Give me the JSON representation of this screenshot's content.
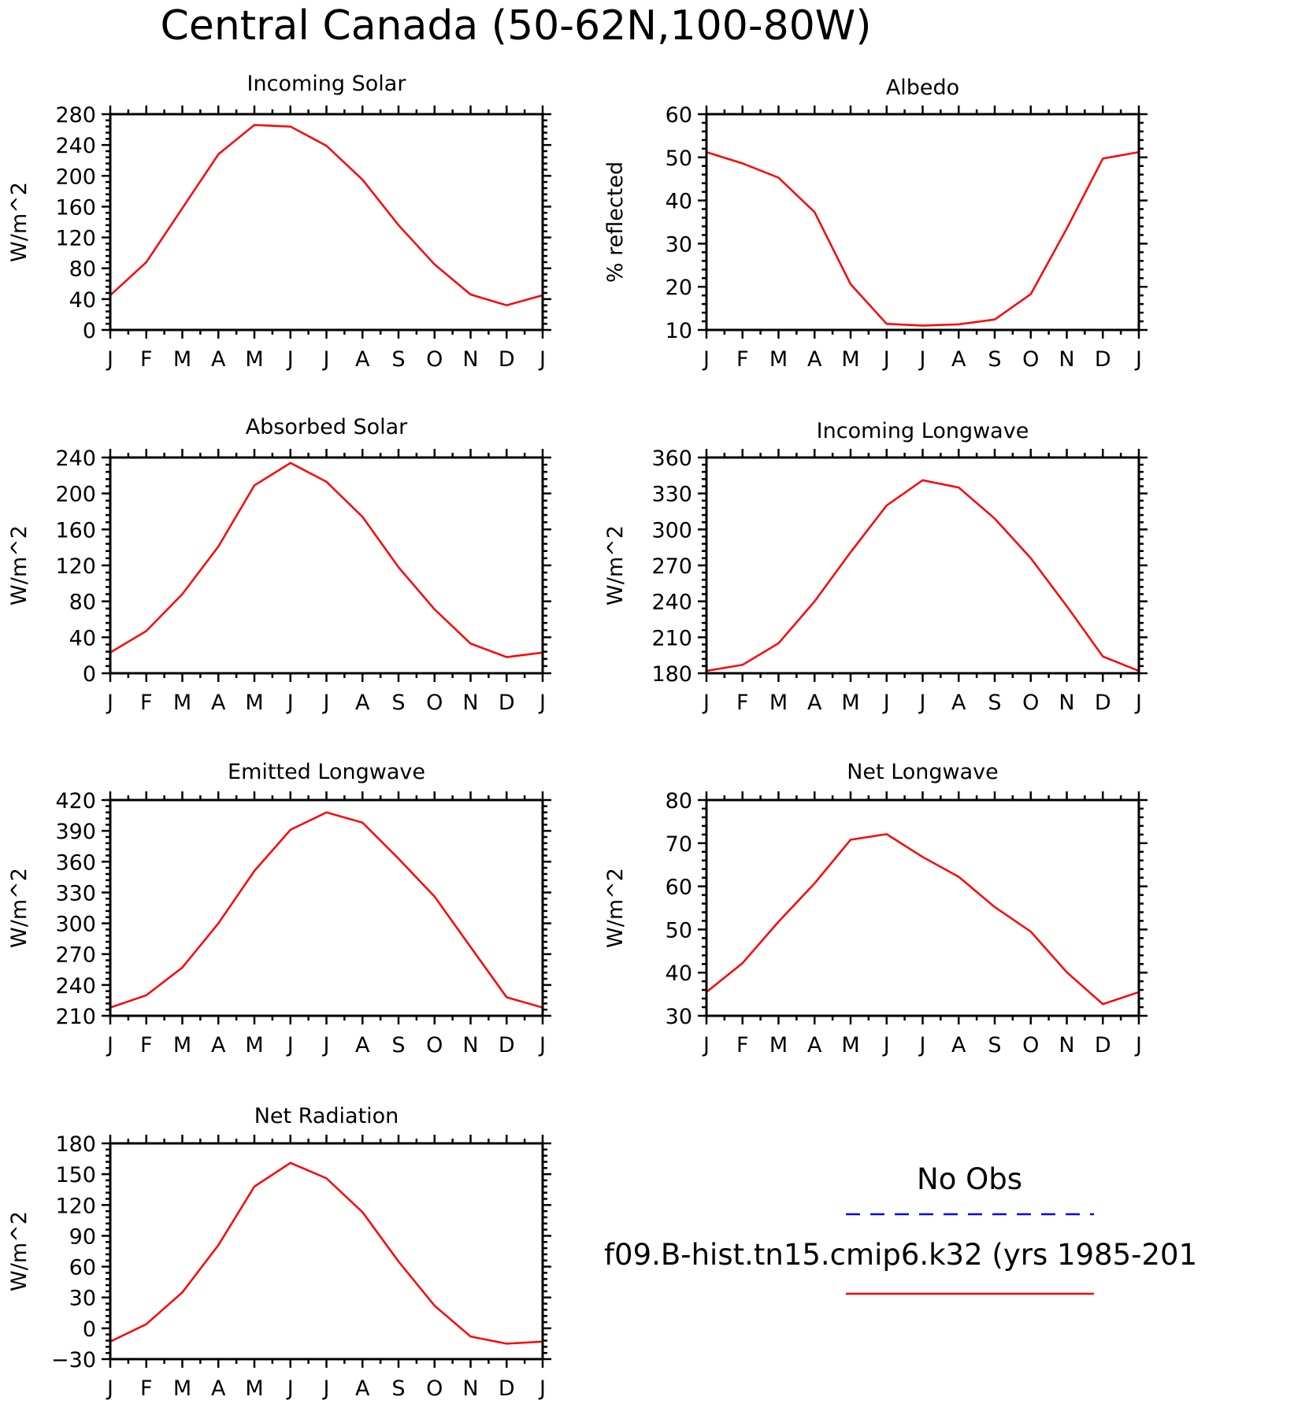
{
  "title": "Central Canada (50-62N,100-80W)",
  "colors": {
    "model": "#ff0000",
    "obs": "#0000ff"
  },
  "legend": {
    "obs_label": "No Obs",
    "model_label": "f09.B-hist.tn15.cmip6.k32 (yrs 1985-201"
  },
  "chart_data": [
    {
      "type": "line",
      "title": "Incoming Solar",
      "ylabel": "W/m^2",
      "xlabel": "",
      "categories": [
        "J",
        "F",
        "M",
        "A",
        "M",
        "J",
        "J",
        "A",
        "S",
        "O",
        "N",
        "D",
        "J"
      ],
      "ylim": [
        0,
        280
      ],
      "yticks": [
        0,
        40,
        80,
        120,
        160,
        200,
        240,
        280
      ],
      "series": [
        {
          "values": [
            45,
            88,
            158,
            228,
            266,
            264,
            239,
            195,
            136,
            85,
            46,
            32,
            45
          ]
        }
      ]
    },
    {
      "type": "line",
      "title": "Albedo",
      "ylabel": "% reflected",
      "xlabel": "",
      "categories": [
        "J",
        "F",
        "M",
        "A",
        "M",
        "J",
        "J",
        "A",
        "S",
        "O",
        "N",
        "D",
        "J"
      ],
      "ylim": [
        10,
        60
      ],
      "yticks": [
        10,
        20,
        30,
        40,
        50,
        60
      ],
      "series": [
        {
          "values": [
            51.2,
            48.6,
            45.3,
            37.3,
            20.6,
            11.4,
            11.0,
            11.3,
            12.4,
            18.3,
            33.5,
            49.7,
            51.2
          ]
        }
      ]
    },
    {
      "type": "line",
      "title": "Absorbed Solar",
      "ylabel": "W/m^2",
      "xlabel": "",
      "categories": [
        "J",
        "F",
        "M",
        "A",
        "M",
        "J",
        "J",
        "A",
        "S",
        "O",
        "N",
        "D",
        "J"
      ],
      "ylim": [
        0,
        240
      ],
      "yticks": [
        0,
        40,
        80,
        120,
        160,
        200,
        240
      ],
      "series": [
        {
          "values": [
            23,
            47,
            88,
            141,
            209,
            234,
            213,
            174,
            118,
            71,
            33,
            18,
            23
          ]
        }
      ]
    },
    {
      "type": "line",
      "title": "Incoming Longwave",
      "ylabel": "W/m^2",
      "xlabel": "",
      "categories": [
        "J",
        "F",
        "M",
        "A",
        "M",
        "J",
        "J",
        "A",
        "S",
        "O",
        "N",
        "D",
        "J"
      ],
      "ylim": [
        180,
        360
      ],
      "yticks": [
        180,
        210,
        240,
        270,
        300,
        330,
        360
      ],
      "series": [
        {
          "values": [
            182,
            187,
            205,
            240,
            281,
            320,
            341,
            335,
            309,
            276,
            236,
            194,
            182
          ]
        }
      ]
    },
    {
      "type": "line",
      "title": "Emitted Longwave",
      "ylabel": "W/m^2",
      "xlabel": "",
      "categories": [
        "J",
        "F",
        "M",
        "A",
        "M",
        "J",
        "J",
        "A",
        "S",
        "O",
        "N",
        "D",
        "J"
      ],
      "ylim": [
        210,
        420
      ],
      "yticks": [
        210,
        240,
        270,
        300,
        330,
        360,
        390,
        420
      ],
      "series": [
        {
          "values": [
            218,
            230,
            257,
            300,
            351,
            391,
            408,
            398,
            363,
            326,
            277,
            228,
            218
          ]
        }
      ]
    },
    {
      "type": "line",
      "title": "Net Longwave",
      "ylabel": "W/m^2",
      "xlabel": "",
      "categories": [
        "J",
        "F",
        "M",
        "A",
        "M",
        "J",
        "J",
        "A",
        "S",
        "O",
        "N",
        "D",
        "J"
      ],
      "ylim": [
        30,
        80
      ],
      "yticks": [
        30,
        40,
        50,
        60,
        70,
        80
      ],
      "series": [
        {
          "values": [
            35.5,
            42.2,
            51.8,
            60.7,
            70.8,
            72.1,
            66.8,
            62.2,
            55.2,
            49.5,
            40.1,
            32.7,
            35.5
          ]
        }
      ]
    },
    {
      "type": "line",
      "title": "Net Radiation",
      "ylabel": "W/m^2",
      "xlabel": "",
      "categories": [
        "J",
        "F",
        "M",
        "A",
        "M",
        "J",
        "J",
        "A",
        "S",
        "O",
        "N",
        "D",
        "J"
      ],
      "ylim": [
        -30,
        180
      ],
      "yticks": [
        -30,
        0,
        30,
        60,
        90,
        120,
        150,
        180
      ],
      "series": [
        {
          "values": [
            -13,
            4,
            35,
            81,
            138,
            161,
            146,
            113,
            65,
            22,
            -8,
            -15,
            -13
          ]
        }
      ]
    }
  ]
}
